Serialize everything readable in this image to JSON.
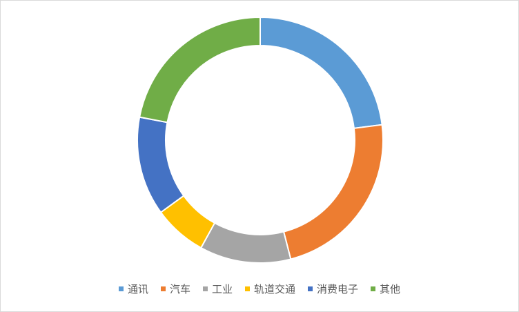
{
  "chart_data": {
    "type": "pie",
    "variant": "donut",
    "categories": [
      "通讯",
      "汽车",
      "工业",
      "轨道交通",
      "消费电子",
      "其他"
    ],
    "values": [
      23,
      23,
      12,
      7,
      13,
      22
    ],
    "colors": [
      "#5B9BD5",
      "#ED7D31",
      "#A5A5A5",
      "#FFC000",
      "#4472C4",
      "#70AD47"
    ],
    "legend_position": "bottom",
    "start_angle": "top, clockwise"
  }
}
